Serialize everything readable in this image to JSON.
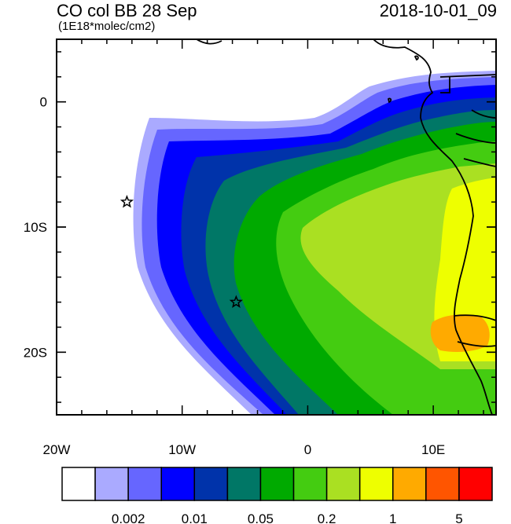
{
  "header": {
    "title": "CO col BB 28 Sep",
    "units": "(1E18*molec/cm2)",
    "datetime": "2018-10-01_09"
  },
  "axes": {
    "x_ticks": [
      {
        "lon": -20,
        "label": "20W"
      },
      {
        "lon": -10,
        "label": "10W"
      },
      {
        "lon": 0,
        "label": "0"
      },
      {
        "lon": 10,
        "label": "10E"
      }
    ],
    "y_ticks": [
      {
        "lat": 0,
        "label": "0"
      },
      {
        "lat": -10,
        "label": "10S"
      },
      {
        "lat": -20,
        "label": "20S"
      }
    ],
    "lon_range": [
      -20,
      15
    ],
    "lat_range": [
      -25,
      5
    ]
  },
  "markers": [
    {
      "name": "star",
      "lon": -14.4,
      "lat": -8.0
    },
    {
      "name": "star",
      "lon": -5.7,
      "lat": -16.0
    }
  ],
  "colorbar": {
    "colors": [
      "#ffffff",
      "#aaaaff",
      "#6666ff",
      "#0000ff",
      "#0033aa",
      "#007766",
      "#00aa00",
      "#44cc11",
      "#aae022",
      "#eeff00",
      "#ffaa00",
      "#ff5500",
      "#ff0000"
    ],
    "labels": [
      {
        "after_box": 1,
        "text": "0.002"
      },
      {
        "after_box": 3,
        "text": "0.01"
      },
      {
        "after_box": 5,
        "text": "0.05"
      },
      {
        "after_box": 7,
        "text": "0.2"
      },
      {
        "after_box": 9,
        "text": "1"
      },
      {
        "after_box": 11,
        "text": "5"
      }
    ]
  }
}
